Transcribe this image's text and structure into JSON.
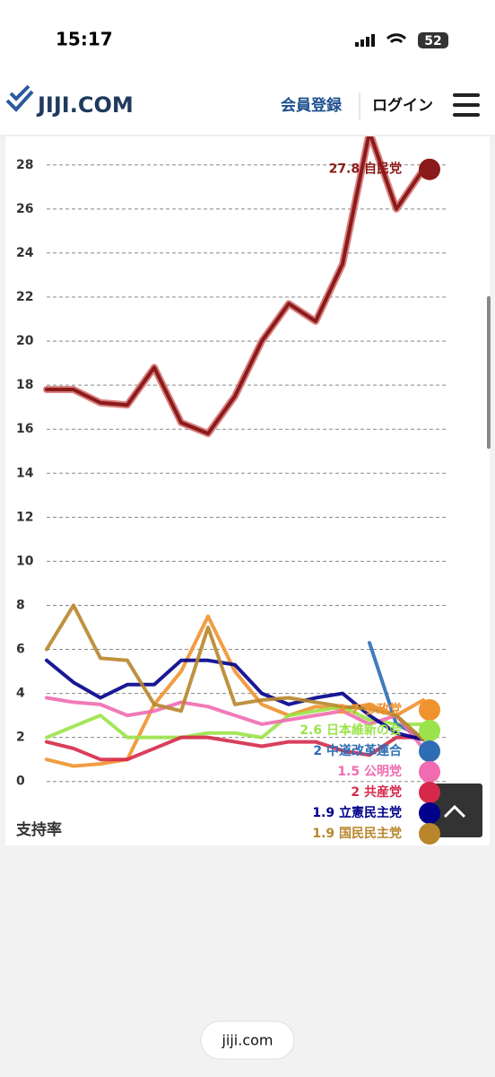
{
  "status_bar": {
    "time": "15:17",
    "battery": "52"
  },
  "header": {
    "logo": "JIJI.COM",
    "links": [
      "会員登録",
      "ログイン"
    ]
  },
  "chart_data": {
    "type": "line",
    "y_label": "支持率",
    "categories": [
      null,
      null,
      null,
      null,
      null,
      null,
      null,
      null,
      null,
      null,
      null,
      null,
      null,
      null,
      null
    ],
    "ylim": [
      -0.5,
      29.5
    ],
    "yticks": [
      0,
      2,
      4,
      6,
      8,
      10,
      12,
      14,
      16,
      18,
      20,
      22,
      24,
      26,
      28
    ],
    "grid": true,
    "series": [
      {
        "name": "自民党",
        "color": "#8b1a1a",
        "values": [
          17.8,
          17.8,
          17.2,
          17.1,
          18.8,
          16.3,
          15.8,
          17.5,
          20,
          21.7,
          20.9,
          23.5,
          29.5,
          26,
          27.8
        ]
      },
      {
        "name": "参政党",
        "color": "#f0922e",
        "values": [
          1,
          0.7,
          0.8,
          1,
          3.5,
          5,
          7.5,
          5,
          3.5,
          3,
          3.4,
          3.3,
          3.5,
          3,
          3.7
        ]
      },
      {
        "name": "日本維新の会",
        "color": "#9be34a",
        "values": [
          2,
          2.5,
          3,
          2,
          2,
          2,
          2.2,
          2.2,
          2,
          3,
          3.2,
          3.4,
          2.8,
          2.6,
          2.6
        ]
      },
      {
        "name": "中道改革連合",
        "color": "#2e6db4",
        "values": [
          null,
          null,
          null,
          null,
          null,
          null,
          null,
          null,
          null,
          null,
          null,
          null,
          6.3,
          2.6,
          2
        ]
      },
      {
        "name": "公明党",
        "color": "#f06bb0",
        "values": [
          3.8,
          3.6,
          3.5,
          3,
          3.2,
          3.6,
          3.4,
          3,
          2.6,
          2.8,
          3,
          3.2,
          2.6,
          3,
          1.5
        ]
      },
      {
        "name": "共産党",
        "color": "#d6294a",
        "values": [
          1.8,
          1.5,
          1,
          1,
          1.5,
          2,
          2,
          1.8,
          1.6,
          1.8,
          1.8,
          1.4,
          1.2,
          2,
          2
        ]
      },
      {
        "name": "立憲民主党",
        "color": "#00008b",
        "values": [
          5.5,
          4.5,
          3.8,
          4.4,
          4.4,
          5.5,
          5.5,
          5.3,
          4,
          3.5,
          3.8,
          4,
          3,
          2.2,
          1.9
        ]
      },
      {
        "name": "国民民主党",
        "color": "#b8862b",
        "values": [
          6,
          8,
          5.6,
          5.5,
          3.5,
          3.2,
          7,
          3.5,
          3.7,
          3.8,
          3.6,
          3.4,
          3.3,
          3,
          1.9
        ]
      }
    ]
  },
  "url": "jiji.com"
}
